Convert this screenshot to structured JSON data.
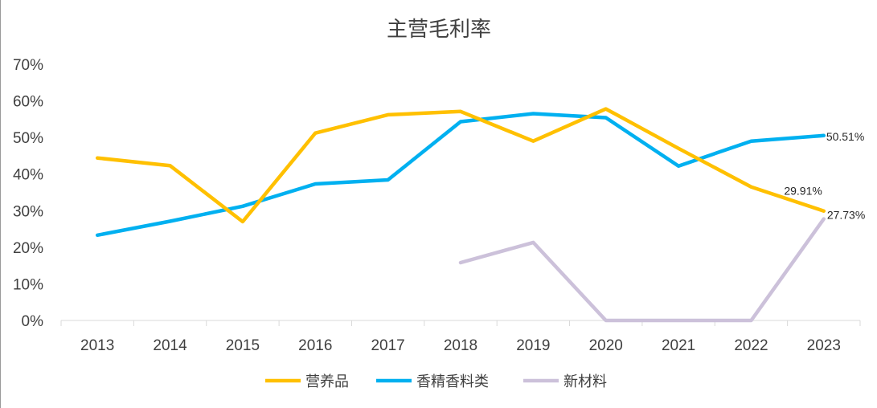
{
  "chart_data": {
    "type": "line",
    "title": "主营毛利率",
    "categories": [
      "2013",
      "2014",
      "2015",
      "2016",
      "2017",
      "2018",
      "2019",
      "2020",
      "2021",
      "2022",
      "2023"
    ],
    "ylim": [
      0,
      70
    ],
    "yticks": [
      "0%",
      "10%",
      "20%",
      "30%",
      "40%",
      "50%",
      "60%",
      "70%"
    ],
    "grid": false,
    "legend_position": "bottom",
    "series": [
      {
        "name": "营养品",
        "color": "#FFC000",
        "values": [
          44.4,
          42.3,
          27.0,
          51.2,
          56.2,
          57.1,
          49.0,
          57.8,
          47.0,
          36.5,
          29.91
        ]
      },
      {
        "name": "香精香料类",
        "color": "#00B0F0",
        "values": [
          23.3,
          27.1,
          31.2,
          37.3,
          38.4,
          54.3,
          56.5,
          55.4,
          42.2,
          49.0,
          50.51
        ]
      },
      {
        "name": "新材料",
        "color": "#CCC1DA",
        "values": [
          null,
          null,
          null,
          null,
          null,
          15.8,
          21.3,
          0.0,
          0.0,
          0.0,
          27.73
        ]
      }
    ],
    "data_labels": [
      {
        "series": "香精香料类",
        "index": 10,
        "text": "50.51%"
      },
      {
        "series": "营养品",
        "index": 10,
        "text": "29.91%"
      },
      {
        "series": "新材料",
        "index": 10,
        "text": "27.73%"
      }
    ]
  }
}
